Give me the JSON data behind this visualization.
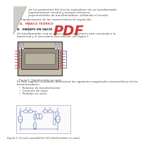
{
  "background_color": "#f5f5f0",
  "white": "#ffffff",
  "text_color": "#444444",
  "text_dark": "#222222",
  "section_a_color": "#cc4444",
  "section_b_color": "#333333",
  "fig1_outer_bg": "#c8bfaf",
  "fig1_inner_bg": "#9a8f80",
  "fig1_center_bg": "#b8b0a0",
  "fig1_border": "#444444",
  "circuit_blue": "#3355aa",
  "circuit_red": "#cc3333",
  "pdf_color": "#cc2222",
  "fig2_bg": "#fafafa",
  "fig2_border": "#aaaaaa",
  "corner_gray": "#d0ccc8",
  "corner_line": "#b0aca8",
  "line_sep": "#bbbbbb",
  "texts_right_col": [
    "de los parámetros del circuito equivalente de un transformador",
    "representación circuital y ensayos eléctricos",
    "experimentales de transformadores, utilizando el circuito"
  ],
  "bullet_text": "representación de las características de regulación.",
  "section_a": "A.  MARCO TEÓRICO",
  "section_b": "B.  ENSAYO EN VACÍO",
  "para_b1": "Un transformador está en vacío cuando el primario está conectado a la",
  "para_b2": "fuente/red y el secundario está abierto, ver Figura 1.",
  "fig1_caption": "Figura 1. Transformador en vacío",
  "para2_1": "En este régimen se pueden determinar las siguientes magnitudes características de los",
  "para2_2": "transformadores:",
  "bullet_a": "Relación de transformación",
  "bullet_b": "Corriente de vacío",
  "bullet_c": "Pérdidas en vacío",
  "fig2_caption": "Figura 2. Circuito equivalente del transformador en vacío",
  "pdf_label": "PDF"
}
